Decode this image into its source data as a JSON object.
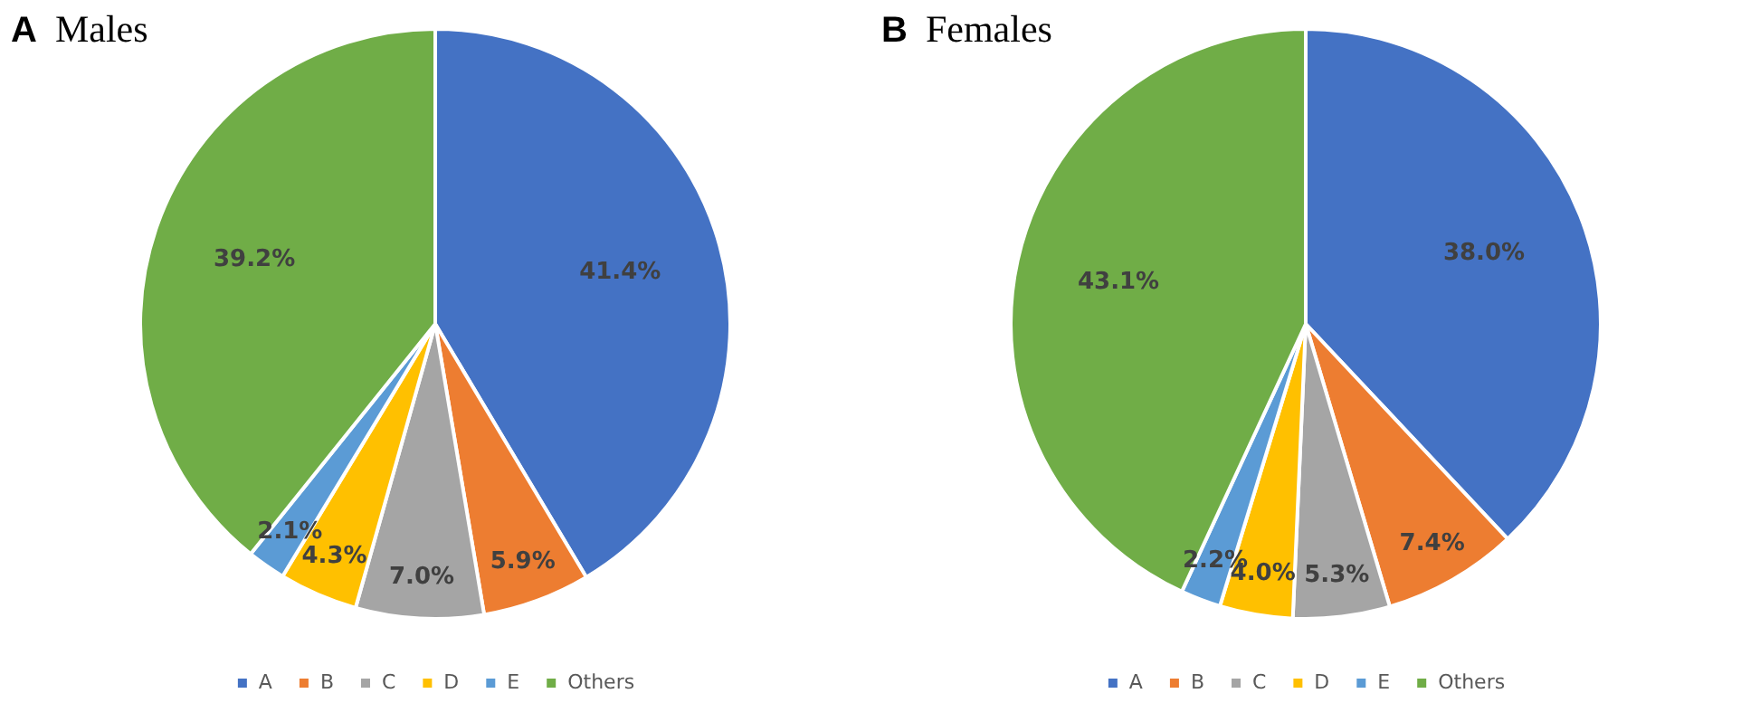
{
  "chart_data": [
    {
      "type": "pie",
      "title": "Males",
      "annotations": [
        "A"
      ],
      "categories": [
        "A",
        "B",
        "C",
        "D",
        "E",
        "Others"
      ],
      "values": [
        41.4,
        5.9,
        7.0,
        4.3,
        2.1,
        39.2
      ],
      "value_labels": [
        "41.4%",
        "5.9%",
        "7.0%",
        "4.3%",
        "2.1%",
        "39.2%"
      ],
      "colors": [
        "#4472c4",
        "#ed7d31",
        "#a5a5a5",
        "#ffc000",
        "#5b9bd5",
        "#70ad47"
      ],
      "legend": "bottom"
    },
    {
      "type": "pie",
      "title": "Females",
      "annotations": [
        "B"
      ],
      "categories": [
        "A",
        "B",
        "C",
        "D",
        "E",
        "Others"
      ],
      "values": [
        38.0,
        7.4,
        5.3,
        4.0,
        2.2,
        43.1
      ],
      "value_labels": [
        "38.0%",
        "7.4%",
        "5.3%",
        "4.0%",
        "2.2%",
        "43.1%"
      ],
      "colors": [
        "#4472c4",
        "#ed7d31",
        "#a5a5a5",
        "#ffc000",
        "#5b9bd5",
        "#70ad47"
      ],
      "legend": "bottom"
    }
  ]
}
